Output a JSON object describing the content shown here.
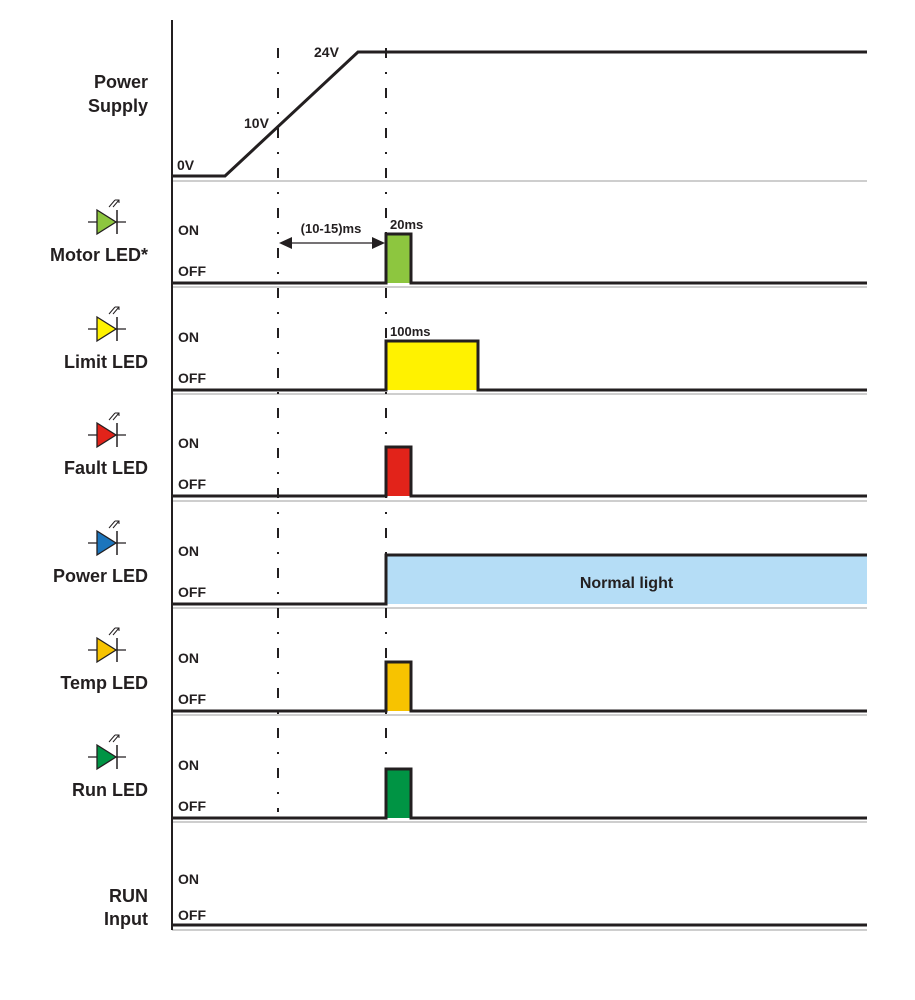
{
  "diagram": {
    "power_supply": {
      "label_lines": [
        "Power",
        "Supply"
      ],
      "levels": [
        "0V",
        "10V",
        "24V"
      ]
    },
    "interval_label": "(10-15)ms",
    "state_on": "ON",
    "state_off": "OFF",
    "signals": [
      {
        "id": "motor",
        "label": "Motor LED*",
        "led_color": "#8dc63f",
        "pulse_color": "#8dc63f",
        "pulse": "short",
        "duration_label": "20ms"
      },
      {
        "id": "limit",
        "label": "Limit LED",
        "led_color": "#fff200",
        "pulse_color": "#fff200",
        "pulse": "long",
        "duration_label": "100ms"
      },
      {
        "id": "fault",
        "label": "Fault LED",
        "led_color": "#e2231a",
        "pulse_color": "#e2231a",
        "pulse": "short"
      },
      {
        "id": "power",
        "label": "Power LED",
        "led_color": "#1c75bc",
        "pulse_color": "#b5ddf6",
        "pulse": "continuous",
        "fill_label": "Normal light"
      },
      {
        "id": "temp",
        "label": "Temp LED",
        "led_color": "#f7c300",
        "pulse_color": "#f7c300",
        "pulse": "short"
      },
      {
        "id": "run",
        "label": "Run LED",
        "led_color": "#009444",
        "pulse_color": "#009444",
        "pulse": "short"
      }
    ],
    "run_input": {
      "label_lines": [
        "RUN",
        "Input"
      ],
      "pulse": "none"
    }
  }
}
